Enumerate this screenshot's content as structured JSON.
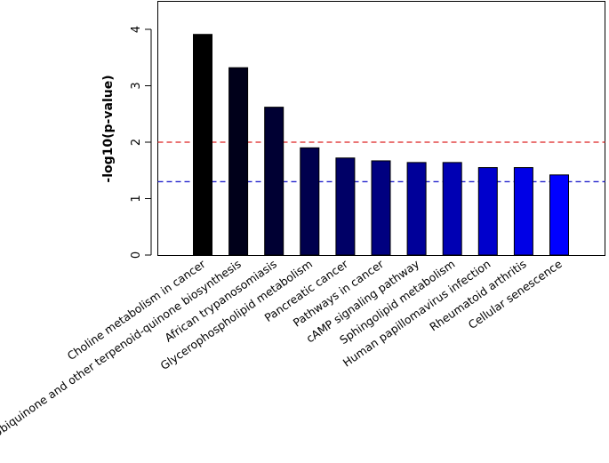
{
  "chart_data": {
    "type": "bar",
    "title": "",
    "xlabel": "",
    "ylabel": "-log10(p-value)",
    "ylim": [
      0,
      4.5
    ],
    "yticks": [
      0,
      1,
      2,
      3,
      4
    ],
    "grid": false,
    "categories": [
      "Choline metabolism in cancer",
      "Ubiquinone and other terpenoid-quinone biosynthesis",
      "African trypanosomiasis",
      "Glycerophospholipid metabolism",
      "Pancreatic cancer",
      "Pathways in cancer",
      "cAMP signaling pathway",
      "Sphingolipid metabolism",
      "Human papillomavirus infection",
      "Rheumatoid arthritis",
      "Cellular senescence"
    ],
    "values": [
      3.91,
      3.32,
      2.62,
      1.9,
      1.72,
      1.67,
      1.64,
      1.64,
      1.55,
      1.55,
      1.42
    ],
    "bar_colors": [
      "#000000",
      "#00001a",
      "#000033",
      "#00004d",
      "#000066",
      "#000080",
      "#000099",
      "#0000b3",
      "#0000cc",
      "#0000e6",
      "#0000ff"
    ],
    "reference_lines": [
      {
        "value": 2.0,
        "color": "#dd2222",
        "style": "dashed"
      },
      {
        "value": 1.3,
        "color": "#2222cc",
        "style": "dashed"
      }
    ]
  }
}
